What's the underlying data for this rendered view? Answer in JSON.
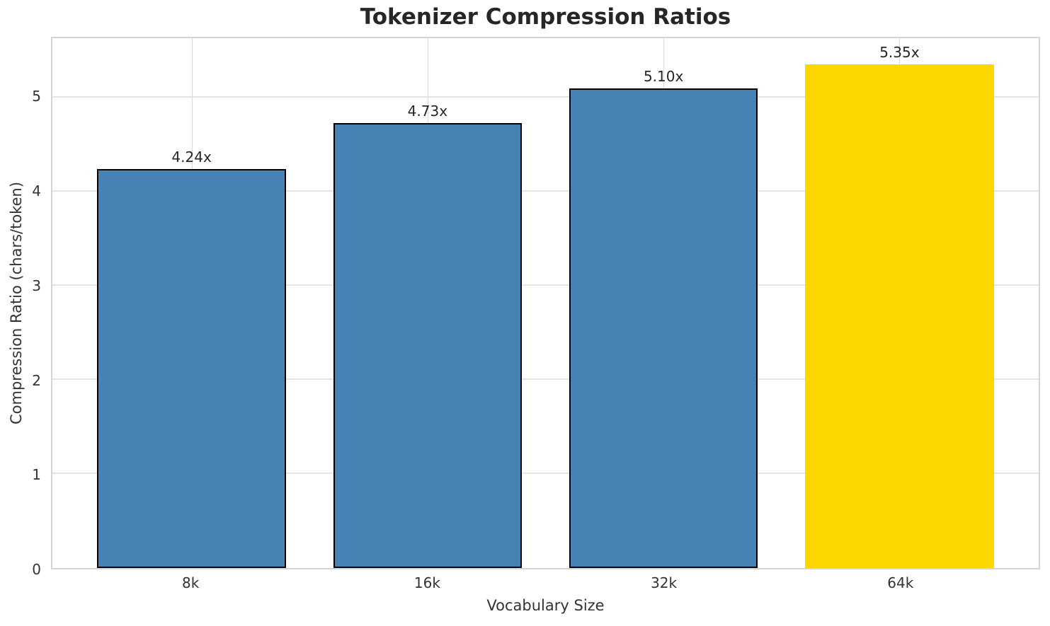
{
  "chart_data": {
    "type": "bar",
    "title": "Tokenizer Compression Ratios",
    "xlabel": "Vocabulary Size",
    "ylabel": "Compression Ratio (chars/token)",
    "categories": [
      "8k",
      "16k",
      "32k",
      "64k"
    ],
    "values": [
      4.24,
      4.73,
      5.1,
      5.35
    ],
    "value_labels": [
      "4.24x",
      "4.73x",
      "5.10x",
      "5.35x"
    ],
    "bar_colors": [
      "#4682B4",
      "#4682B4",
      "#4682B4",
      "#FFD700"
    ],
    "bar_edge_colors": [
      "#000000",
      "#000000",
      "#000000",
      "none"
    ],
    "highlight_color": "#FFD700",
    "base_bar_color": "#4682B4",
    "ylim": [
      0,
      5.63
    ],
    "yticks": [
      0,
      1,
      2,
      3,
      4,
      5
    ],
    "ytick_labels": [
      "0",
      "1",
      "2",
      "3",
      "4",
      "5"
    ],
    "grid": true,
    "legend_position": "none"
  },
  "style_colors": {
    "h_grid": "#e4e4e4",
    "v_grid": "#d9d9d9",
    "spine": "#d4d4d4",
    "tick_text": "#333333",
    "title_text": "#262626",
    "background": "#ffffff"
  }
}
